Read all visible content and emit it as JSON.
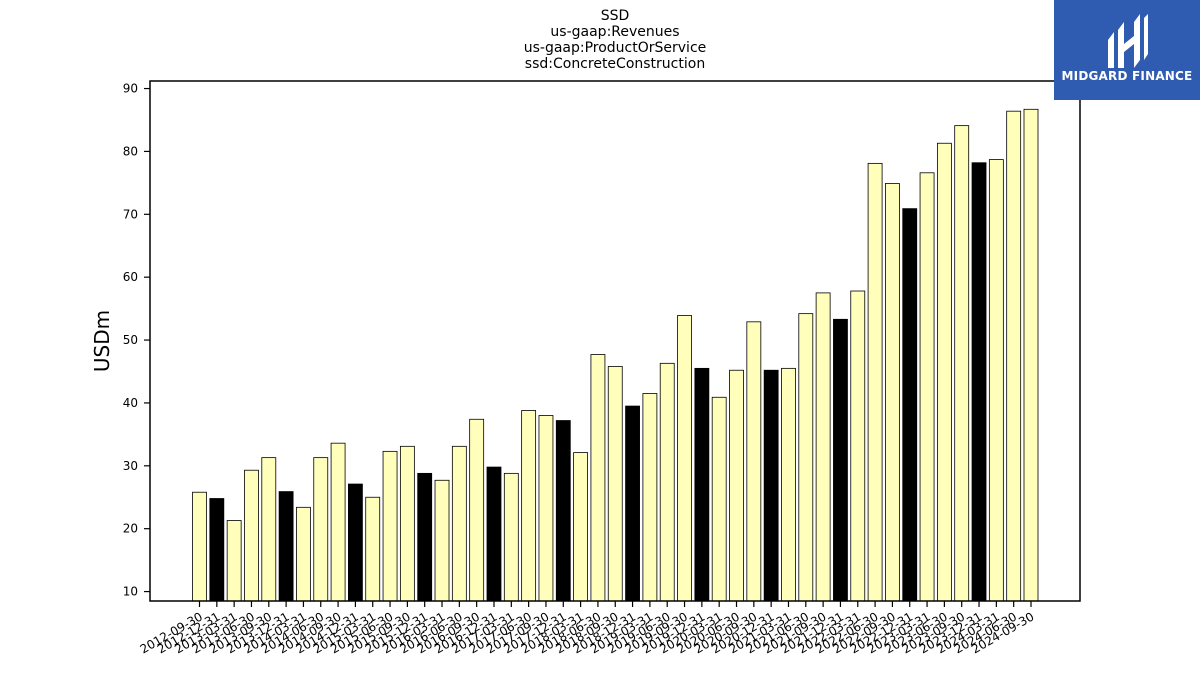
{
  "logo": {
    "text": "MIDGARD FINANCE",
    "icon": "midgard-logo-icon",
    "background": "#2f5cb0"
  },
  "chart_data": {
    "type": "bar",
    "title_lines": [
      "SSD",
      "us-gaap:Revenues",
      "us-gaap:ProductOrService",
      "ssd:ConcreteConstruction"
    ],
    "xlabel": "",
    "ylabel": "USDm",
    "ylim": [
      8.5,
      91.2
    ],
    "yticks": [
      10,
      20,
      30,
      40,
      50,
      60,
      70,
      80,
      90
    ],
    "grid": false,
    "colors": {
      "quarter": "#ffffbb",
      "fiscal_year_end": "#000000",
      "edge": "#000000"
    },
    "categories": [
      "2012-09-30",
      "2012-12-31",
      "2013-03-31",
      "2013-06-30",
      "2013-09-30",
      "2013-12-31",
      "2014-03-31",
      "2014-06-30",
      "2014-09-30",
      "2014-12-31",
      "2015-03-31",
      "2015-06-30",
      "2015-09-30",
      "2015-12-31",
      "2016-03-31",
      "2016-06-30",
      "2016-09-30",
      "2016-12-31",
      "2017-03-31",
      "2017-06-30",
      "2017-09-30",
      "2017-12-31",
      "2018-03-31",
      "2018-06-30",
      "2018-09-30",
      "2018-12-31",
      "2019-03-31",
      "2019-06-30",
      "2019-09-30",
      "2019-12-31",
      "2020-03-31",
      "2020-06-30",
      "2020-09-30",
      "2020-12-31",
      "2021-03-31",
      "2021-06-30",
      "2021-09-30",
      "2021-12-31",
      "2022-03-31",
      "2022-06-30",
      "2022-09-30",
      "2022-12-31",
      "2023-03-31",
      "2023-06-30",
      "2023-09-30",
      "2023-12-31",
      "2024-03-31",
      "2024-06-30",
      "2024-09-30"
    ],
    "values": [
      25.8,
      24.8,
      21.3,
      29.3,
      31.3,
      25.9,
      23.4,
      31.3,
      33.6,
      27.1,
      25.0,
      32.3,
      33.1,
      28.8,
      27.7,
      33.1,
      37.4,
      29.8,
      28.8,
      38.8,
      38.0,
      37.2,
      32.1,
      47.7,
      45.8,
      39.5,
      41.5,
      46.3,
      53.9,
      45.5,
      40.9,
      45.2,
      52.9,
      45.2,
      45.5,
      54.2,
      57.5,
      53.3,
      57.8,
      78.1,
      74.9,
      70.9,
      76.6,
      81.3,
      84.1,
      78.2,
      78.7,
      86.4,
      86.7
    ],
    "highlight": [
      false,
      true,
      false,
      false,
      false,
      true,
      false,
      false,
      false,
      true,
      false,
      false,
      false,
      true,
      false,
      false,
      false,
      true,
      false,
      false,
      false,
      true,
      false,
      false,
      false,
      true,
      false,
      false,
      false,
      true,
      false,
      false,
      false,
      true,
      false,
      false,
      false,
      true,
      false,
      false,
      false,
      true,
      false,
      false,
      false,
      true,
      false,
      false,
      false
    ]
  }
}
